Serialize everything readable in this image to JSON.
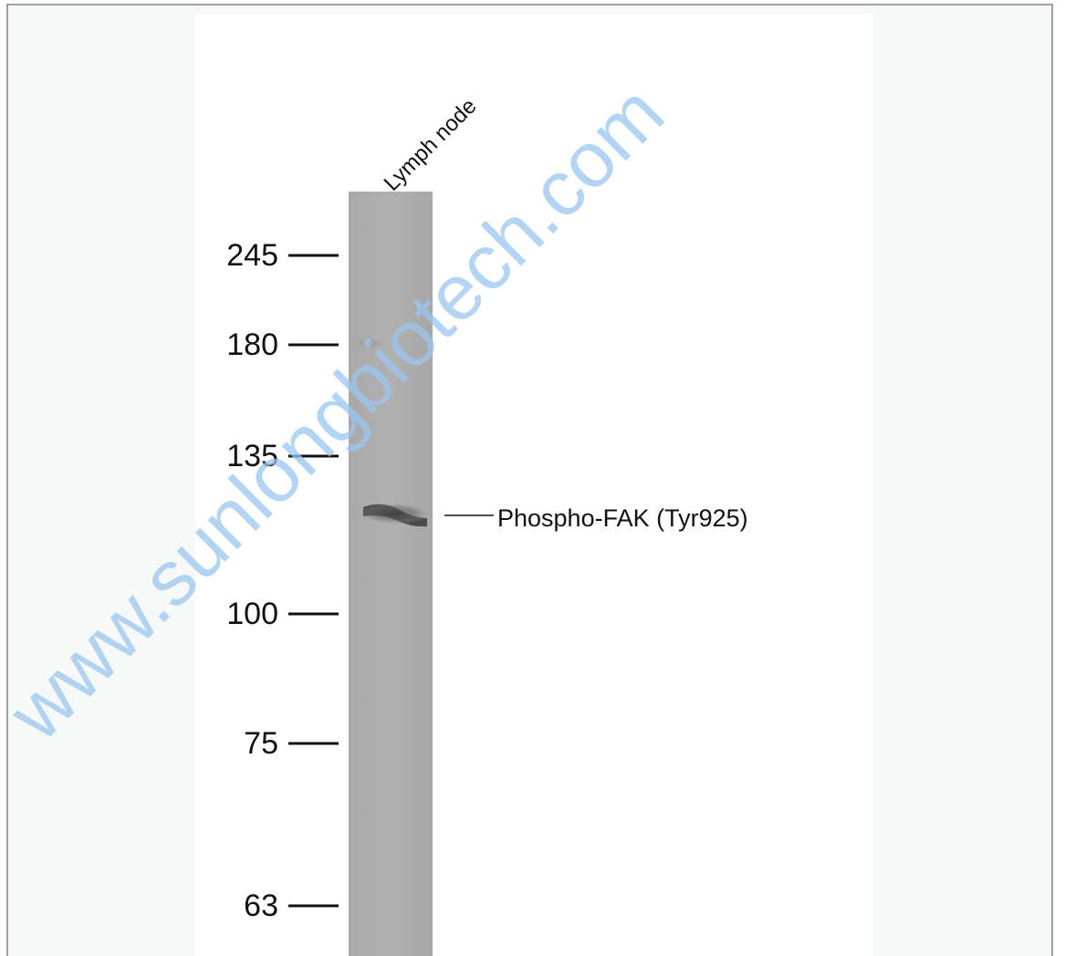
{
  "figure": {
    "lane_label": "Lymph node",
    "markers": [
      245,
      180,
      135,
      100,
      75,
      63
    ],
    "band_label": "Phospho-FAK (Tyr925)",
    "watermark": "www.sunlongbiotech.com"
  }
}
